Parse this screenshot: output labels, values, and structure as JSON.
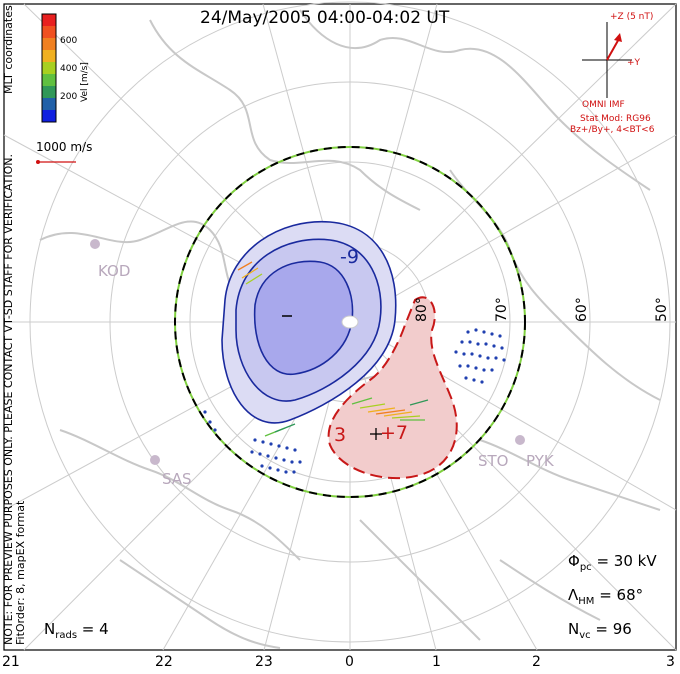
{
  "title": "24/May/2005 04:00-04:02 UT",
  "notes": {
    "line1": "NOTE: FOR PREVIEW PURPOSES ONLY. PLEASE CONTACT VT-SD STAFF FOR VERIFICATION.",
    "line2": "FitOrder: 8, mapEX format",
    "coordinates": "MLT coordinates"
  },
  "colorbar": {
    "title": "Vel [m/s]",
    "ticks": [
      "600",
      "400",
      "200"
    ],
    "colors": [
      "#e82020",
      "#f05020",
      "#f08020",
      "#f0b020",
      "#a8d020",
      "#60c040",
      "#309858",
      "#2060a8",
      "#1020e0"
    ]
  },
  "velocity_scale": {
    "label": "1000 m/s",
    "color": "#d01010"
  },
  "imf": {
    "z_label": "+Z (5 nT)",
    "y_label": "+Y",
    "source": "OMNI IMF",
    "stat_mod": "Stat Mod: RG96",
    "condition": "Bz+/By+, 4<BT<6"
  },
  "stats": {
    "phi_pc": "30 kV",
    "lambda_hm": "68°",
    "n_vc": "96",
    "n_rads": "4"
  },
  "latitude_labels": [
    "80°",
    "70°",
    "60°",
    "50°"
  ],
  "mlt_labels": [
    "21",
    "22",
    "23",
    "0",
    "1",
    "2",
    "3"
  ],
  "radars": [
    "KOD",
    "SAS",
    "STO",
    "PYK"
  ],
  "contours": {
    "negative_label": "-9",
    "positive_label": "+7",
    "neg_small": "-",
    "pos_small": "3"
  },
  "colors": {
    "negative_fill": "#b8b8f0",
    "negative_line": "#1a2a9e",
    "positive_fill": "#f2cccc",
    "positive_line": "#c81818",
    "coastline": "#c8c8c8",
    "grid": "#cccccc",
    "boundary_green": "#80d040"
  }
}
